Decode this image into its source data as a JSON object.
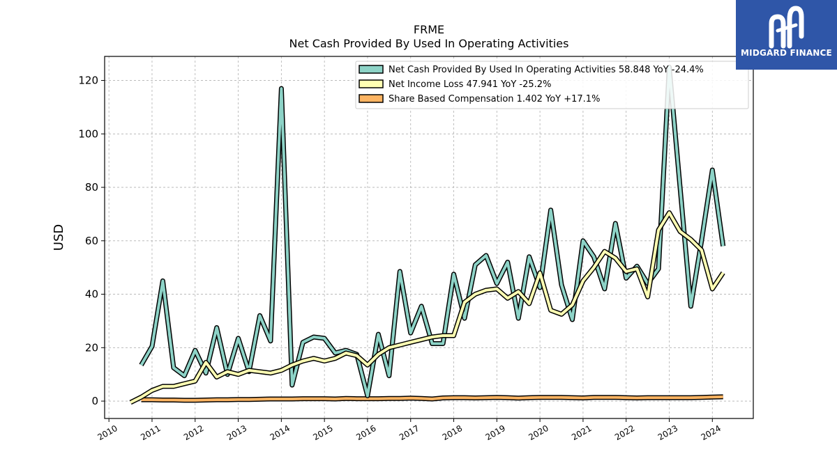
{
  "brand": {
    "name": "MIDGARD FINANCE",
    "logo_icon": "midgard-m-icon",
    "color": "#2f56a8"
  },
  "chart_data": {
    "type": "line",
    "title": "FRME",
    "subtitle": "Net Cash Provided By Used In Operating Activities",
    "ylabel": "USD",
    "xlabel": "",
    "ylim": [
      -6.5,
      129
    ],
    "xlim": [
      2009.9,
      2024.95
    ],
    "yticks": [
      0,
      20,
      40,
      60,
      80,
      100,
      120
    ],
    "xticks": [
      2010,
      2011,
      2012,
      2013,
      2014,
      2015,
      2016,
      2017,
      2018,
      2019,
      2020,
      2021,
      2022,
      2023,
      2024
    ],
    "grid": true,
    "legend_position": "top-right",
    "series": [
      {
        "name": "Net Cash Provided By Used In Operating Activities",
        "legend": "Net Cash Provided By Used In Operating Activities  58.848 YoY -24.4%",
        "color": "#8dd3c7",
        "x": [
          2010.75,
          2011.0,
          2011.25,
          2011.5,
          2011.75,
          2012.0,
          2012.25,
          2012.5,
          2012.75,
          2013.0,
          2013.25,
          2013.5,
          2013.75,
          2014.0,
          2014.25,
          2014.5,
          2014.75,
          2015.0,
          2015.25,
          2015.5,
          2015.75,
          2016.0,
          2016.25,
          2016.5,
          2016.75,
          2017.0,
          2017.25,
          2017.5,
          2017.75,
          2018.0,
          2018.25,
          2018.5,
          2018.75,
          2019.0,
          2019.25,
          2019.5,
          2019.75,
          2020.0,
          2020.25,
          2020.5,
          2020.75,
          2021.0,
          2021.25,
          2021.5,
          2021.75,
          2022.0,
          2022.25,
          2022.5,
          2022.75,
          2023.0,
          2023.25,
          2023.5,
          2023.75,
          2024.0,
          2024.25
        ],
        "y": [
          13.5,
          20.5,
          45,
          12.5,
          9.5,
          19,
          10.5,
          27.5,
          10,
          23.5,
          11,
          32,
          22.5,
          117,
          6,
          22,
          24,
          23.5,
          18,
          19,
          17.5,
          2,
          25,
          9.5,
          48.5,
          25.5,
          35.5,
          21.5,
          21.5,
          47.5,
          31,
          51,
          54.5,
          44,
          52,
          31,
          54,
          42.5,
          71.5,
          43.5,
          30.5,
          60,
          54,
          42,
          66.5,
          46,
          50.5,
          44,
          49.5,
          125,
          80,
          35.5,
          60,
          86.5,
          58
        ]
      },
      {
        "name": "Net Income Loss",
        "legend": "Net Income Loss  47.941 YoY -25.2%",
        "color": "#ffffb3",
        "x": [
          2010.5,
          2010.75,
          2011.0,
          2011.25,
          2011.5,
          2011.75,
          2012.0,
          2012.25,
          2012.5,
          2012.75,
          2013.0,
          2013.25,
          2013.5,
          2013.75,
          2014.0,
          2014.25,
          2014.5,
          2014.75,
          2015.0,
          2015.25,
          2015.5,
          2015.75,
          2016.0,
          2016.25,
          2016.5,
          2016.75,
          2017.0,
          2017.25,
          2017.5,
          2017.75,
          2018.0,
          2018.25,
          2018.5,
          2018.75,
          2019.0,
          2019.25,
          2019.5,
          2019.75,
          2020.0,
          2020.25,
          2020.5,
          2020.75,
          2021.0,
          2021.25,
          2021.5,
          2021.75,
          2022.0,
          2022.25,
          2022.5,
          2022.75,
          2023.0,
          2023.25,
          2023.5,
          2023.75,
          2024.0,
          2024.25
        ],
        "y": [
          -0.5,
          1.5,
          4,
          5.5,
          5.5,
          6.5,
          7.5,
          14.5,
          9,
          11,
          10,
          11.5,
          11,
          10.5,
          11.5,
          13.5,
          15,
          16,
          15,
          16,
          18,
          17,
          13.5,
          17.5,
          20,
          21,
          22,
          23,
          24,
          24.5,
          24.5,
          37,
          40,
          41.5,
          42,
          38.5,
          41,
          36.5,
          48,
          34,
          32.5,
          36,
          45,
          50,
          56,
          53.5,
          48.5,
          49.5,
          39,
          64,
          70.5,
          63.5,
          60.5,
          56.5,
          42,
          48
        ]
      },
      {
        "name": "Share Based Compensation",
        "legend": "Share Based Compensation  1.402 YoY +17.1%",
        "color": "#fdb462",
        "x": [
          2010.75,
          2011.0,
          2011.25,
          2011.5,
          2011.75,
          2012.0,
          2012.25,
          2012.5,
          2012.75,
          2013.0,
          2013.25,
          2013.5,
          2013.75,
          2014.0,
          2014.25,
          2014.5,
          2014.75,
          2015.0,
          2015.25,
          2015.5,
          2015.75,
          2016.0,
          2016.25,
          2016.5,
          2016.75,
          2017.0,
          2017.25,
          2017.5,
          2017.75,
          2018.0,
          2018.25,
          2018.5,
          2018.75,
          2019.0,
          2019.25,
          2019.5,
          2019.75,
          2020.0,
          2020.25,
          2020.5,
          2020.75,
          2021.0,
          2021.25,
          2021.5,
          2021.75,
          2022.0,
          2022.25,
          2022.5,
          2022.75,
          2023.0,
          2023.25,
          2023.5,
          2023.75,
          2024.0,
          2024.25
        ],
        "y": [
          0.5,
          0.5,
          0.4,
          0.4,
          0.3,
          0.3,
          0.4,
          0.5,
          0.5,
          0.6,
          0.6,
          0.7,
          0.8,
          0.8,
          0.8,
          0.9,
          0.9,
          0.9,
          0.8,
          1.0,
          0.9,
          0.9,
          0.9,
          1.0,
          1.0,
          1.1,
          1.0,
          0.8,
          1.2,
          1.3,
          1.3,
          1.2,
          1.3,
          1.4,
          1.3,
          1.1,
          1.3,
          1.4,
          1.4,
          1.4,
          1.3,
          1.2,
          1.4,
          1.4,
          1.4,
          1.3,
          1.2,
          1.3,
          1.3,
          1.3,
          1.3,
          1.3,
          1.4,
          1.5,
          1.6
        ]
      }
    ]
  }
}
